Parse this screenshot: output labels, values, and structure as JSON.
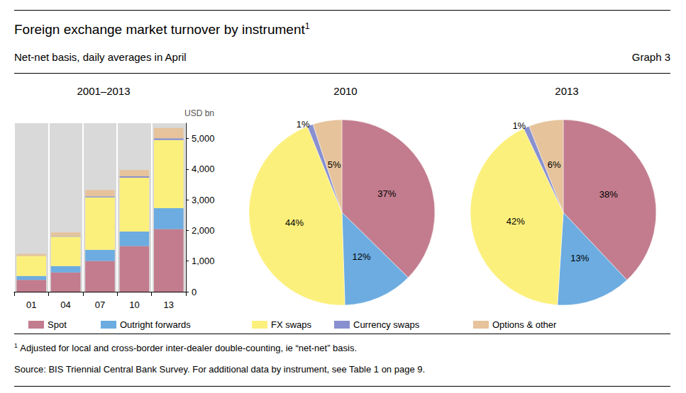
{
  "header": {
    "title": "Foreign exchange market turnover by instrument",
    "title_note": "1",
    "subtitle": "Net-net basis, daily averages in April",
    "label": "Graph 3",
    "footnote": {
      "mark": "1",
      "text": "Adjusted for local and cross-border inter-dealer double-counting, ie “net-net” basis."
    },
    "source": "Source: BIS Triennial Central Bank Survey. For additional data by instrument, see Table 1 on page 9."
  },
  "chart_data": [
    {
      "type": "bar",
      "title": "2001–2013",
      "y_label": "USD bn",
      "categories": [
        "01",
        "04",
        "07",
        "10",
        "13"
      ],
      "stacked": true,
      "grid": false,
      "legend": "bottom",
      "ylim": [
        0,
        5500
      ],
      "yticks": [
        0,
        {
          "value": 1000,
          "label": "1,000"
        },
        {
          "value": 2000,
          "label": "2,000"
        },
        {
          "value": 3000,
          "label": "3,000"
        },
        {
          "value": 4000,
          "label": "4,000"
        },
        {
          "value": 5000,
          "label": "5,000"
        }
      ],
      "series": [
        {
          "name": "Spot",
          "color": "#c27c8e",
          "values": [
            386,
            631,
            1005,
            1489,
            2046
          ]
        },
        {
          "name": "Outright forwards",
          "color": "#6cace0",
          "values": [
            130,
            209,
            362,
            475,
            680
          ]
        },
        {
          "name": "FX swaps",
          "color": "#fcf07c",
          "values": [
            656,
            954,
            1714,
            1759,
            2228
          ]
        },
        {
          "name": "Currency swaps",
          "color": "#8890d0",
          "values": [
            7,
            21,
            31,
            43,
            54
          ]
        },
        {
          "name": "Options & other",
          "color": "#e6c39b",
          "values": [
            60,
            119,
            212,
            207,
            337
          ]
        }
      ]
    },
    {
      "type": "pie",
      "title": "2010",
      "data_labels": true,
      "categories": [
        "Spot",
        "Outright forwards",
        "FX swaps",
        "Currency swaps",
        "Options & other"
      ],
      "values": [
        37,
        12,
        44,
        1,
        5
      ],
      "value_labels": [
        "37%",
        "12%",
        "44%",
        "1%",
        "5%"
      ],
      "colors": [
        "#c27c8e",
        "#6cace0",
        "#fcf07c",
        "#8890d0",
        "#e6c39b"
      ]
    },
    {
      "type": "pie",
      "title": "2013",
      "data_labels": true,
      "categories": [
        "Spot",
        "Outright forwards",
        "FX swaps",
        "Currency swaps",
        "Options & other"
      ],
      "values": [
        38,
        13,
        42,
        1,
        6
      ],
      "value_labels": [
        "38%",
        "13%",
        "42%",
        "1%",
        "6%"
      ],
      "colors": [
        "#c27c8e",
        "#6cace0",
        "#fcf07c",
        "#8890d0",
        "#e6c39b"
      ]
    }
  ]
}
